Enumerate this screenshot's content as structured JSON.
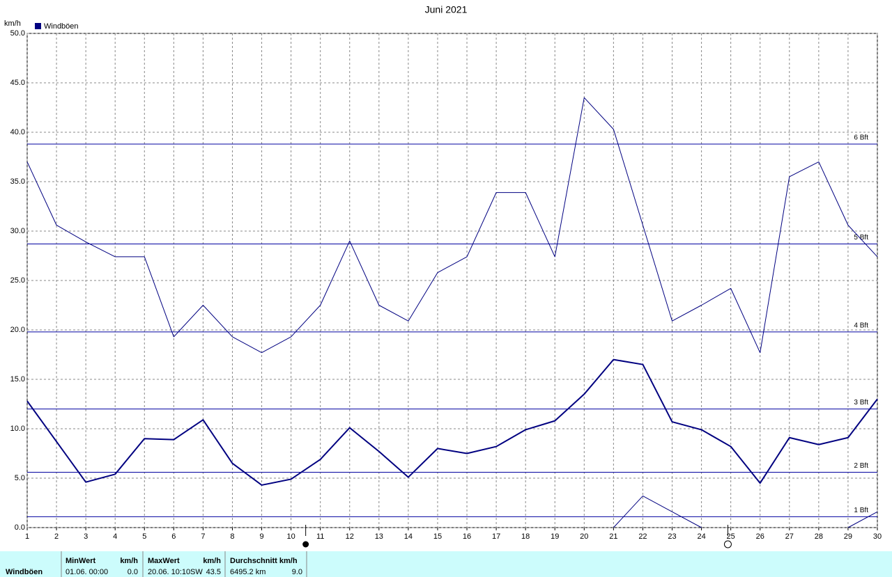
{
  "chart_data": {
    "type": "line",
    "title": "Juni 2021",
    "y_label": "km/h",
    "legend_label": "Windböen",
    "legend_color": "#000080",
    "x": [
      1,
      2,
      3,
      4,
      5,
      6,
      7,
      8,
      9,
      10,
      11,
      12,
      13,
      14,
      15,
      16,
      17,
      18,
      19,
      20,
      21,
      22,
      23,
      24,
      25,
      26,
      27,
      28,
      29,
      30
    ],
    "xlim": [
      1,
      30
    ],
    "xticks": [
      1,
      2,
      3,
      4,
      5,
      6,
      7,
      8,
      9,
      10,
      11,
      12,
      13,
      14,
      15,
      16,
      17,
      18,
      19,
      20,
      21,
      22,
      23,
      24,
      25,
      26,
      27,
      28,
      29,
      30
    ],
    "ylim": [
      0,
      50
    ],
    "yticks": [
      {
        "value": 0,
        "label": "0.0"
      },
      {
        "value": 5,
        "label": "5.0"
      },
      {
        "value": 10,
        "label": "10.0"
      },
      {
        "value": 15,
        "label": "15.0"
      },
      {
        "value": 20,
        "label": "20.0"
      },
      {
        "value": 25,
        "label": "25.0"
      },
      {
        "value": 30,
        "label": "30.0"
      },
      {
        "value": 35,
        "label": "35.0"
      },
      {
        "value": 40,
        "label": "40.0"
      },
      {
        "value": 45,
        "label": "45.0"
      },
      {
        "value": 50,
        "label": "50.0"
      }
    ],
    "grid": true,
    "series": [
      {
        "color": "#000080",
        "line_width": 1,
        "values": [
          37.0,
          30.6,
          28.9,
          27.4,
          27.4,
          19.3,
          22.5,
          19.3,
          17.7,
          19.3,
          22.5,
          29.0,
          22.5,
          20.9,
          25.8,
          27.4,
          33.9,
          33.9,
          27.4,
          43.5,
          40.3,
          30.6,
          20.9,
          22.5,
          24.2,
          17.7,
          35.5,
          37.0,
          30.6,
          27.4
        ]
      },
      {
        "color": "#000080",
        "line_width": 2,
        "values": [
          12.8,
          8.7,
          4.6,
          5.4,
          9.0,
          8.9,
          10.9,
          6.5,
          4.3,
          4.9,
          6.9,
          10.1,
          7.7,
          5.1,
          8.0,
          7.5,
          8.2,
          9.9,
          10.8,
          13.5,
          17.0,
          16.5,
          10.7,
          9.9,
          8.2,
          4.5,
          9.1,
          8.4,
          9.1,
          13.0
        ]
      },
      {
        "color": "#000080",
        "line_width": 1,
        "values": [
          null,
          null,
          null,
          null,
          null,
          null,
          null,
          null,
          null,
          null,
          null,
          null,
          null,
          null,
          null,
          null,
          null,
          null,
          null,
          null,
          0,
          3.2,
          1.6,
          0,
          null,
          null,
          null,
          null,
          0,
          1.6
        ]
      }
    ],
    "reference_color": "#0000a0",
    "reference_lines": [
      {
        "label": "1 Bft",
        "value": 1.1
      },
      {
        "label": "2 Bft",
        "value": 5.6
      },
      {
        "label": "3 Bft",
        "value": 12.0
      },
      {
        "label": "4 Bft",
        "value": 19.8
      },
      {
        "label": "5 Bft",
        "value": 28.7
      },
      {
        "label": "6 Bft",
        "value": 38.8
      }
    ],
    "moon_markers": [
      {
        "x": 10.5,
        "filled": true
      },
      {
        "x": 24.9,
        "filled": false
      }
    ]
  },
  "summary": {
    "row_label": "Windböen",
    "min": {
      "header": "MinWert",
      "unit": "km/h",
      "time": "01.06.  00:00",
      "value": "0.0"
    },
    "max": {
      "header": "MaxWert",
      "unit": "km/h",
      "time": "20.06.  10:10",
      "direction": "SW",
      "value": "43.5"
    },
    "avg": {
      "header": "Durchschnitt km/h",
      "distance": "6495.2 km",
      "value": "9.0"
    }
  }
}
